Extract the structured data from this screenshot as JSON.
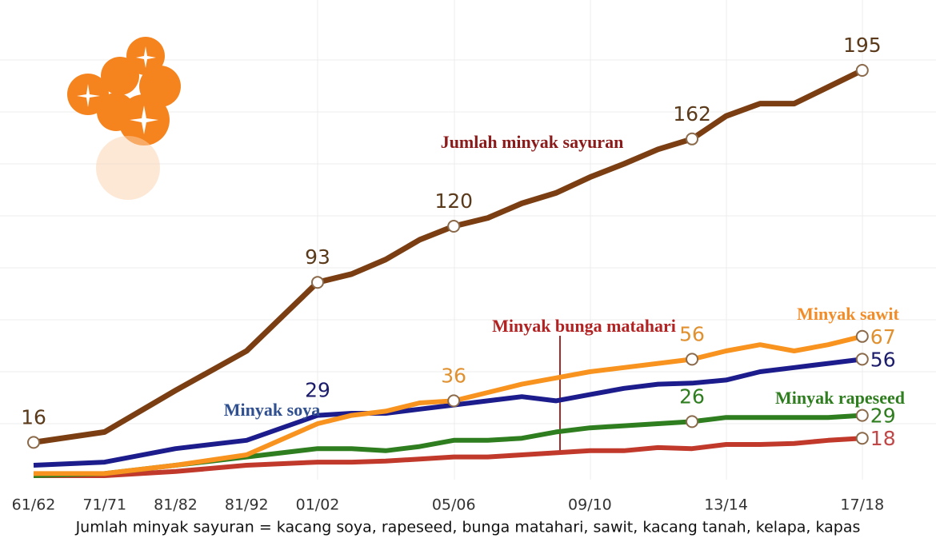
{
  "chart_data": {
    "type": "line",
    "caption": "Jumlah minyak sayuran = kacang soya, rapeseed, bunga matahari, sawit, kacang tanah, kelapa, kapas",
    "categories": [
      "61/62",
      "71/71",
      "81/82",
      "81/92",
      "01/02",
      null,
      null,
      null,
      "05/06",
      null,
      null,
      null,
      "09/10",
      null,
      null,
      null,
      "13/14",
      null,
      null,
      null,
      "17/18"
    ],
    "ylim": [
      0,
      200
    ],
    "series": [
      {
        "name": "Jumlah minyak sayuran",
        "color": "#7a3e12",
        "values": [
          16,
          21,
          41,
          60,
          93,
          97,
          104,
          113.5,
          120,
          124,
          131,
          136,
          143.6,
          150,
          157,
          162,
          173,
          179,
          179,
          187,
          195
        ],
        "value_labels": [
          16,
          null,
          null,
          null,
          93,
          null,
          null,
          null,
          120,
          null,
          null,
          null,
          null,
          null,
          null,
          162,
          null,
          null,
          null,
          null,
          195
        ]
      },
      {
        "name": "Minyak soya",
        "color": "#1c1c8c",
        "values": [
          5,
          6.5,
          13,
          17,
          29,
          30,
          30,
          32,
          34,
          36,
          38,
          36,
          39,
          42,
          44,
          44.5,
          46,
          50,
          52,
          54,
          56
        ],
        "value_labels": [
          null,
          null,
          null,
          null,
          29,
          null,
          null,
          null,
          null,
          null,
          null,
          null,
          null,
          null,
          null,
          null,
          null,
          null,
          null,
          null,
          56
        ]
      },
      {
        "name": "Minyak sawit",
        "color": "#f7931e",
        "values": [
          1,
          1,
          5,
          10,
          25,
          29,
          31,
          35,
          36,
          40,
          44,
          47,
          50,
          52,
          54,
          56,
          60,
          63,
          60,
          63,
          67
        ],
        "value_labels": [
          null,
          null,
          null,
          null,
          null,
          null,
          null,
          null,
          36,
          null,
          null,
          null,
          null,
          null,
          null,
          56,
          null,
          null,
          null,
          null,
          67
        ]
      },
      {
        "name": "Minyak rapeseed",
        "color": "#2e7d1e",
        "values": [
          0,
          1,
          5,
          9,
          13,
          13,
          12,
          14,
          17,
          17,
          18,
          21,
          23,
          24,
          25,
          26,
          28,
          28,
          28,
          28,
          29
        ],
        "value_labels": [
          null,
          null,
          null,
          null,
          null,
          null,
          null,
          null,
          null,
          null,
          null,
          null,
          null,
          null,
          null,
          26,
          null,
          null,
          null,
          null,
          29
        ]
      },
      {
        "name": "Minyak bunga matahari",
        "color": "#c0392b",
        "values": [
          0,
          0,
          2,
          5,
          6.5,
          6.5,
          7,
          8,
          9,
          9,
          10,
          11,
          12,
          12,
          13.5,
          13,
          15,
          15,
          15.5,
          17,
          18
        ],
        "value_labels": [
          null,
          null,
          null,
          null,
          null,
          null,
          null,
          null,
          null,
          null,
          null,
          null,
          null,
          null,
          null,
          null,
          null,
          null,
          null,
          null,
          18
        ]
      }
    ]
  }
}
